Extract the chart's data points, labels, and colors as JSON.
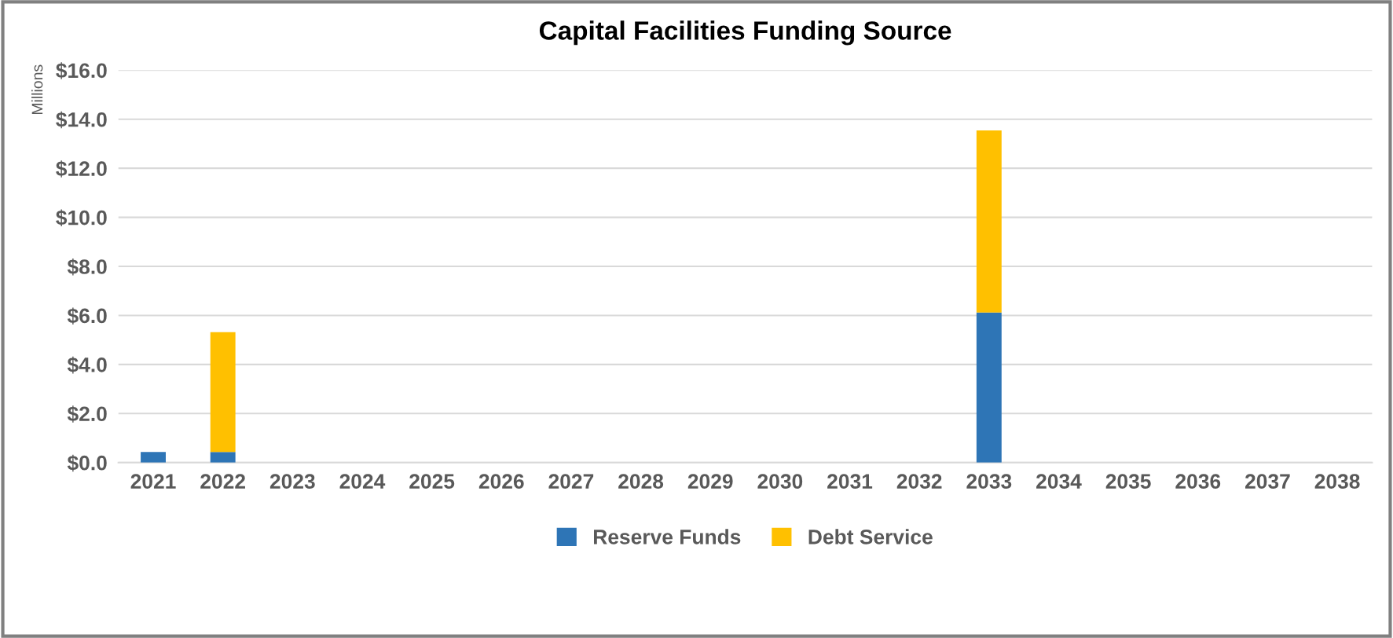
{
  "chart_data": {
    "type": "bar",
    "title": "Capital Facilities Funding Source",
    "ylabel": "Millions",
    "categories": [
      "2021",
      "2022",
      "2023",
      "2024",
      "2025",
      "2026",
      "2027",
      "2028",
      "2029",
      "2030",
      "2031",
      "2032",
      "2033",
      "2034",
      "2035",
      "2036",
      "2037",
      "2038"
    ],
    "series": [
      {
        "name": "Reserve Funds",
        "color": "#2e75b6",
        "values": [
          0.43,
          0.43,
          0,
          0,
          0,
          0,
          0,
          0,
          0,
          0,
          0,
          0,
          6.12,
          0,
          0,
          0,
          0,
          0
        ]
      },
      {
        "name": "Debt Service",
        "color": "#ffc000",
        "values": [
          0,
          4.89,
          0,
          0,
          0,
          0,
          0,
          0,
          0,
          0,
          0,
          0,
          7.42,
          0,
          0,
          0,
          0,
          0
        ]
      }
    ],
    "stacked": true,
    "ylim": [
      0,
      16
    ],
    "yticks": [
      {
        "value": 0,
        "label": "$0.0"
      },
      {
        "value": 2,
        "label": "$2.0"
      },
      {
        "value": 4,
        "label": "$4.0"
      },
      {
        "value": 6,
        "label": "$6.0"
      },
      {
        "value": 8,
        "label": "$8.0"
      },
      {
        "value": 10,
        "label": "$10.0"
      },
      {
        "value": 12,
        "label": "$12.0"
      },
      {
        "value": 14,
        "label": "$14.0"
      },
      {
        "value": 16,
        "label": "$16.0"
      }
    ],
    "grid": "y",
    "legend": "bottom"
  }
}
